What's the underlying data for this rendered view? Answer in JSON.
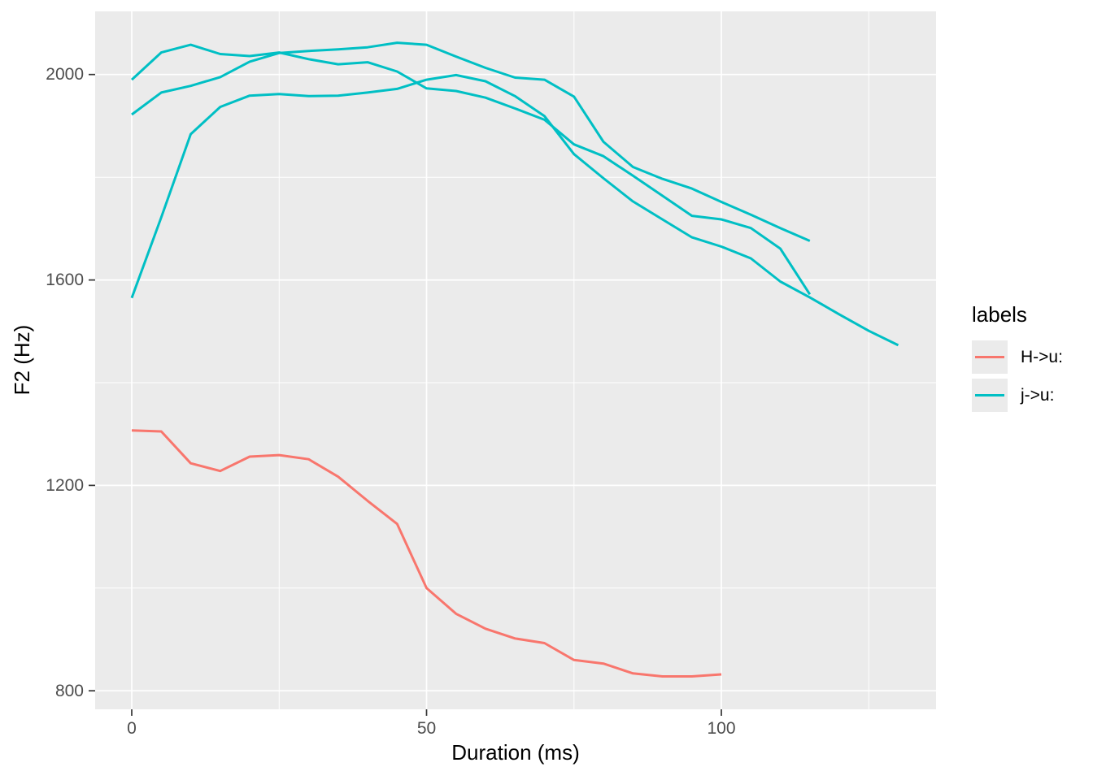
{
  "chart_data": {
    "type": "line",
    "title": "",
    "xlabel": "Duration (ms)",
    "ylabel": "F2 (Hz)",
    "x_ticks": [
      0,
      50,
      100
    ],
    "x_minor_ticks": [
      25,
      75,
      125
    ],
    "y_ticks": [
      800,
      1200,
      1600,
      2000
    ],
    "y_minor_ticks": [
      1000,
      1400,
      1800
    ],
    "xlim": [
      -6.21,
      136.41
    ],
    "ylim": [
      764,
      2123
    ],
    "grid": {
      "visible": true,
      "major_color": "#ffffff",
      "minor_color": "#ffffff"
    },
    "panel_bg": "#ebebeb",
    "tick_color": "#333333",
    "tick_label_color": "#4d4d4d",
    "legend": {
      "title": "labels",
      "position": "right",
      "entries": [
        {
          "label": "H->u:",
          "color": "#F8766D"
        },
        {
          "label": "j->u:",
          "color": "#00BFC4"
        }
      ]
    },
    "series": [
      {
        "name": "H->u: token",
        "legend_label": "H->u:",
        "color": "#F8766D",
        "x": [
          0,
          5,
          10,
          15,
          20,
          25,
          30,
          35,
          40,
          45,
          50,
          55,
          60,
          65,
          70,
          75,
          80,
          85,
          90,
          95,
          100
        ],
        "y": [
          1307,
          1305,
          1243,
          1228,
          1256,
          1259,
          1251,
          1217,
          1170,
          1125,
          1000,
          950,
          921,
          902,
          893,
          860,
          853,
          834,
          828,
          828,
          832
        ]
      },
      {
        "name": "j->u: token 1",
        "legend_label": "j->u:",
        "color": "#00BFC4",
        "x": [
          0,
          5,
          10,
          15,
          20,
          25,
          30,
          35,
          40,
          45,
          50,
          55,
          60,
          65,
          70,
          75,
          80,
          85,
          90,
          95,
          100,
          105,
          110,
          115
        ],
        "y": [
          1990,
          2043,
          2058,
          2040,
          2036,
          2043,
          2030,
          2020,
          2024,
          2006,
          1973,
          1968,
          1955,
          1934,
          1912,
          1864,
          1841,
          1803,
          1764,
          1725,
          1718,
          1701,
          1661,
          1572
        ]
      },
      {
        "name": "j->u: token 2",
        "legend_label": "j->u:",
        "color": "#00BFC4",
        "x": [
          0,
          5,
          10,
          15,
          20,
          25,
          30,
          35,
          40,
          45,
          50,
          55,
          60,
          65,
          70,
          75,
          80,
          85,
          90,
          95,
          100,
          105,
          110,
          115
        ],
        "y": [
          1922,
          1965,
          1978,
          1995,
          2025,
          2042,
          2046,
          2049,
          2053,
          2062,
          2058,
          2035,
          2013,
          1994,
          1990,
          1957,
          1869,
          1820,
          1797,
          1778,
          1752,
          1727,
          1701,
          1676
        ]
      },
      {
        "name": "j->u: token 3",
        "legend_label": "j->u:",
        "color": "#00BFC4",
        "x": [
          0,
          5,
          10,
          15,
          20,
          25,
          30,
          35,
          40,
          45,
          50,
          55,
          60,
          65,
          70,
          75,
          80,
          85,
          90,
          95,
          100,
          105,
          110,
          115,
          120,
          125,
          130
        ],
        "y": [
          1565,
          1722,
          1884,
          1937,
          1959,
          1962,
          1958,
          1959,
          1965,
          1972,
          1990,
          1999,
          1987,
          1958,
          1919,
          1845,
          1798,
          1753,
          1718,
          1683,
          1665,
          1642,
          1597,
          1566,
          1533,
          1501,
          1473
        ]
      }
    ]
  }
}
